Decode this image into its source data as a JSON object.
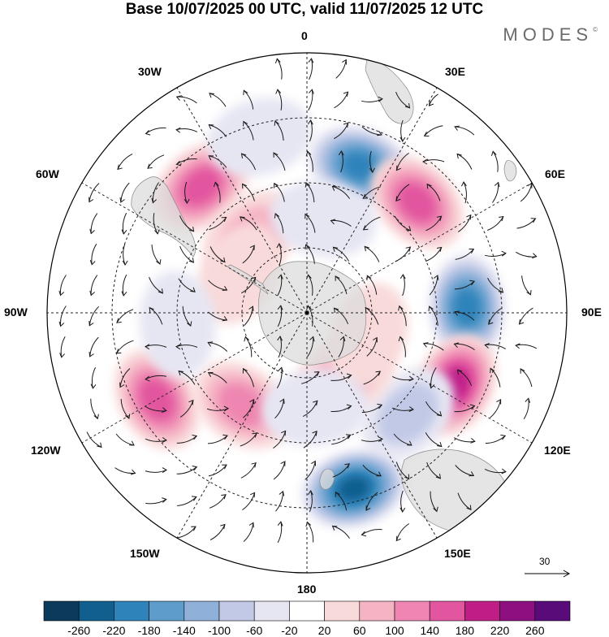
{
  "title": "Base 10/07/2025 00 UTC, valid 11/07/2025 12 UTC",
  "brand": "MODES",
  "brand_mark": "©",
  "longitude_labels": {
    "lon_0": "0",
    "lon_30e": "30E",
    "lon_60e": "60E",
    "lon_90e": "90E",
    "lon_120e": "120E",
    "lon_150e": "150E",
    "lon_180": "180",
    "lon_150w": "150W",
    "lon_120w": "120W",
    "lon_90w": "90W",
    "lon_60w": "60W",
    "lon_30w": "30W"
  },
  "wind_reference": {
    "value": "30"
  },
  "colorbar": {
    "ticks": [
      "-260",
      "-220",
      "-180",
      "-140",
      "-100",
      "-60",
      "-20",
      "20",
      "60",
      "100",
      "140",
      "180",
      "220",
      "260"
    ],
    "colors": [
      "#0c3a5c",
      "#115f8f",
      "#2f83bb",
      "#5e9dcb",
      "#8fb0d9",
      "#c1c9e6",
      "#e6e6f3",
      "#ffffff",
      "#f9dada",
      "#f5b4c4",
      "#ee86b1",
      "#e2559f",
      "#c01d87",
      "#8e0f80",
      "#5a0b7a"
    ]
  },
  "anomaly_blobs": [
    {
      "lon": 20,
      "colat": 36,
      "value": -180
    },
    {
      "lon": 45,
      "colat": 36,
      "value": 160
    },
    {
      "lon": 88,
      "colat": 37,
      "value": -200
    },
    {
      "lon": 116,
      "colat": 38,
      "value": 210
    },
    {
      "lon": 135,
      "colat": 33,
      "value": -70
    },
    {
      "lon": 165,
      "colat": 42,
      "value": -220
    },
    {
      "lon": -120,
      "colat": 40,
      "value": 160
    },
    {
      "lon": -145,
      "colat": 26,
      "value": 120
    },
    {
      "lon": -40,
      "colat": 38,
      "value": 140
    },
    {
      "lon": -35,
      "colat": 22,
      "value": 90
    },
    {
      "lon": -60,
      "colat": 18,
      "value": 40
    },
    {
      "lon": -95,
      "colat": 30,
      "value": -50
    },
    {
      "lon": 150,
      "colat": 17,
      "value": 60
    },
    {
      "lon": 110,
      "colat": 15,
      "value": 50
    },
    {
      "lon": 175,
      "colat": 22,
      "value": -40
    },
    {
      "lon": 10,
      "colat": 22,
      "value": -40
    },
    {
      "lon": -15,
      "colat": 42,
      "value": -30
    }
  ]
}
